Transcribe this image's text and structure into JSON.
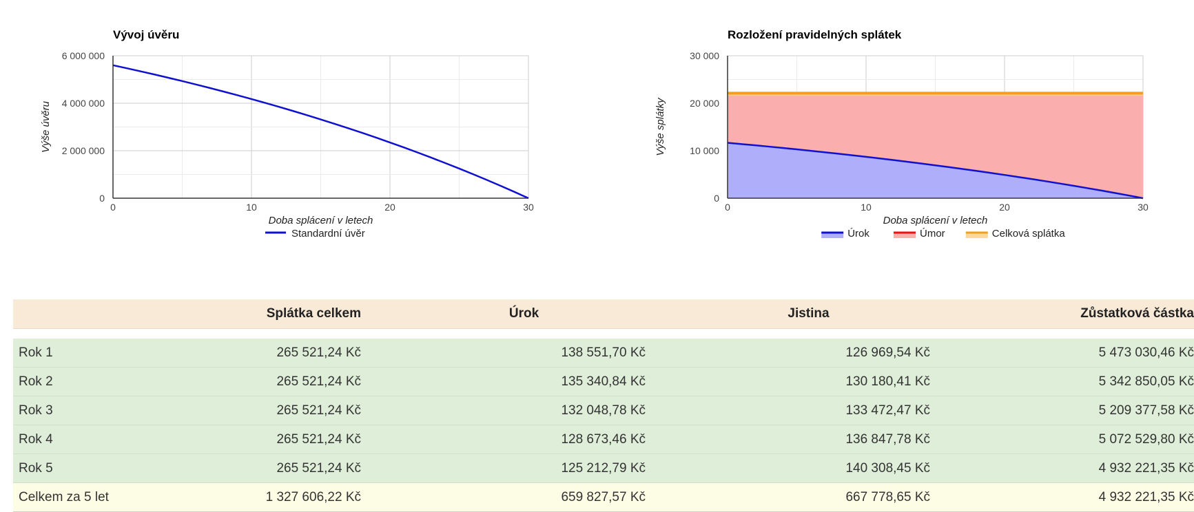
{
  "chart_data": [
    {
      "type": "line",
      "title": "Vývoj úvěru",
      "xlabel": "Doba splácení v letech",
      "ylabel": "Výše úvěru",
      "xlim": [
        0,
        30
      ],
      "ylim": [
        0,
        6000000
      ],
      "x_ticks": [
        "0",
        "10",
        "20",
        "30"
      ],
      "y_ticks": [
        "0",
        "2 000 000",
        "4 000 000",
        "6 000 000"
      ],
      "grid": true,
      "legend": "bottom",
      "series": [
        {
          "name": "Standardní úvěr",
          "color": "#1010d0",
          "x": [
            0,
            1,
            2,
            3,
            4,
            5,
            6,
            7,
            8,
            9,
            10,
            11,
            12,
            13,
            14,
            15,
            16,
            17,
            18,
            19,
            20,
            21,
            22,
            23,
            24,
            25,
            26,
            27,
            28,
            29,
            30
          ],
          "y": [
            5600000,
            5473030,
            5342850,
            5209378,
            5072530,
            4932221,
            4788364,
            4640868,
            4489641,
            4334588,
            4175614,
            4012620,
            3845505,
            3674166,
            3498497,
            3318391,
            3133735,
            2944416,
            2750315,
            2551312,
            2347284,
            2138103,
            1923638,
            1703756,
            1478318,
            1247180,
            1010198,
            767223,
            518103,
            262682,
            0
          ]
        }
      ]
    },
    {
      "type": "area",
      "title": "Rozložení pravidelných splátek",
      "xlabel": "Doba splácení v letech",
      "ylabel": "Výše splátky",
      "xlim": [
        0,
        30
      ],
      "ylim": [
        0,
        30000
      ],
      "x_ticks": [
        "0",
        "10",
        "20",
        "30"
      ],
      "y_ticks": [
        "0",
        "10 000",
        "20 000",
        "30 000"
      ],
      "grid": true,
      "legend": "bottom",
      "series": [
        {
          "name": "Úrok",
          "color": "#1010d0",
          "fill": "#aeaefb",
          "x": [
            0,
            1,
            2,
            3,
            4,
            5,
            6,
            7,
            8,
            9,
            10,
            11,
            12,
            13,
            14,
            15,
            16,
            17,
            18,
            19,
            20,
            21,
            22,
            23,
            24,
            25,
            26,
            27,
            28,
            29,
            30
          ],
          "y": [
            11667,
            11403,
            11135,
            10860,
            10576,
            10285,
            9987,
            9679,
            9364,
            9042,
            8711,
            8372,
            8023,
            7666,
            7300,
            6924,
            6539,
            6144,
            5740,
            5325,
            4899,
            4463,
            4016,
            3558,
            3088,
            2606,
            2112,
            1606,
            1087,
            555,
            0
          ]
        },
        {
          "name": "Úmor",
          "color": "#ee1111",
          "fill": "#fbaeae",
          "x": [
            0,
            30
          ],
          "y": [
            22127,
            22127
          ]
        },
        {
          "name": "Celková splátka",
          "color": "#f0a020",
          "fill": "#f8d99a",
          "x": [
            0,
            30
          ],
          "y": [
            22127,
            22127
          ]
        }
      ]
    }
  ],
  "table": {
    "headers": [
      "",
      "Splátka celkem",
      "Úrok",
      "Jistina",
      "Zůstatková částka"
    ],
    "rows": [
      [
        "Rok 1",
        "265 521,24 Kč",
        "138 551,70 Kč",
        "126 969,54 Kč",
        "5 473 030,46 Kč"
      ],
      [
        "Rok 2",
        "265 521,24 Kč",
        "135 340,84 Kč",
        "130 180,41 Kč",
        "5 342 850,05 Kč"
      ],
      [
        "Rok 3",
        "265 521,24 Kč",
        "132 048,78 Kč",
        "133 472,47 Kč",
        "5 209 377,58 Kč"
      ],
      [
        "Rok 4",
        "265 521,24 Kč",
        "128 673,46 Kč",
        "136 847,78 Kč",
        "5 072 529,80 Kč"
      ],
      [
        "Rok 5",
        "265 521,24 Kč",
        "125 212,79 Kč",
        "140 308,45 Kč",
        "4 932 221,35 Kč"
      ]
    ],
    "total": [
      "Celkem za 5 let",
      "1 327 606,22 Kč",
      "659 827,57 Kč",
      "667 778,65 Kč",
      "4 932 221,35 Kč"
    ]
  }
}
